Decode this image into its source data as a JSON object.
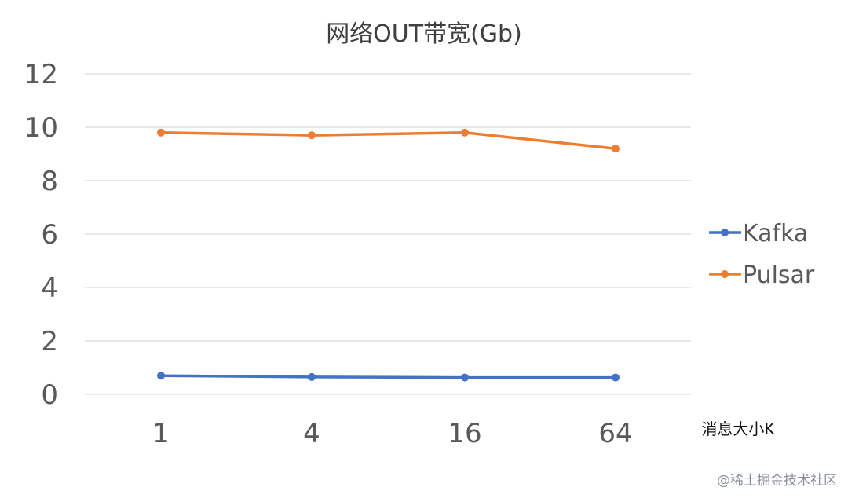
{
  "chart_data": {
    "type": "line",
    "title": "网络OUT带宽(Gb)",
    "xlabel": "消息大小K",
    "ylabel": "",
    "categories": [
      "1",
      "4",
      "16",
      "64"
    ],
    "ylim": [
      0,
      12
    ],
    "yticks": [
      0,
      2,
      4,
      6,
      8,
      10,
      12
    ],
    "grid": true,
    "legend": "right",
    "series": [
      {
        "name": "Kafka",
        "color": "#4472c4",
        "values": [
          0.7,
          0.65,
          0.63,
          0.63
        ]
      },
      {
        "name": "Pulsar",
        "color": "#ed7d31",
        "values": [
          9.8,
          9.7,
          9.8,
          9.2
        ]
      }
    ]
  },
  "watermark": "@稀土掘金技术社区"
}
